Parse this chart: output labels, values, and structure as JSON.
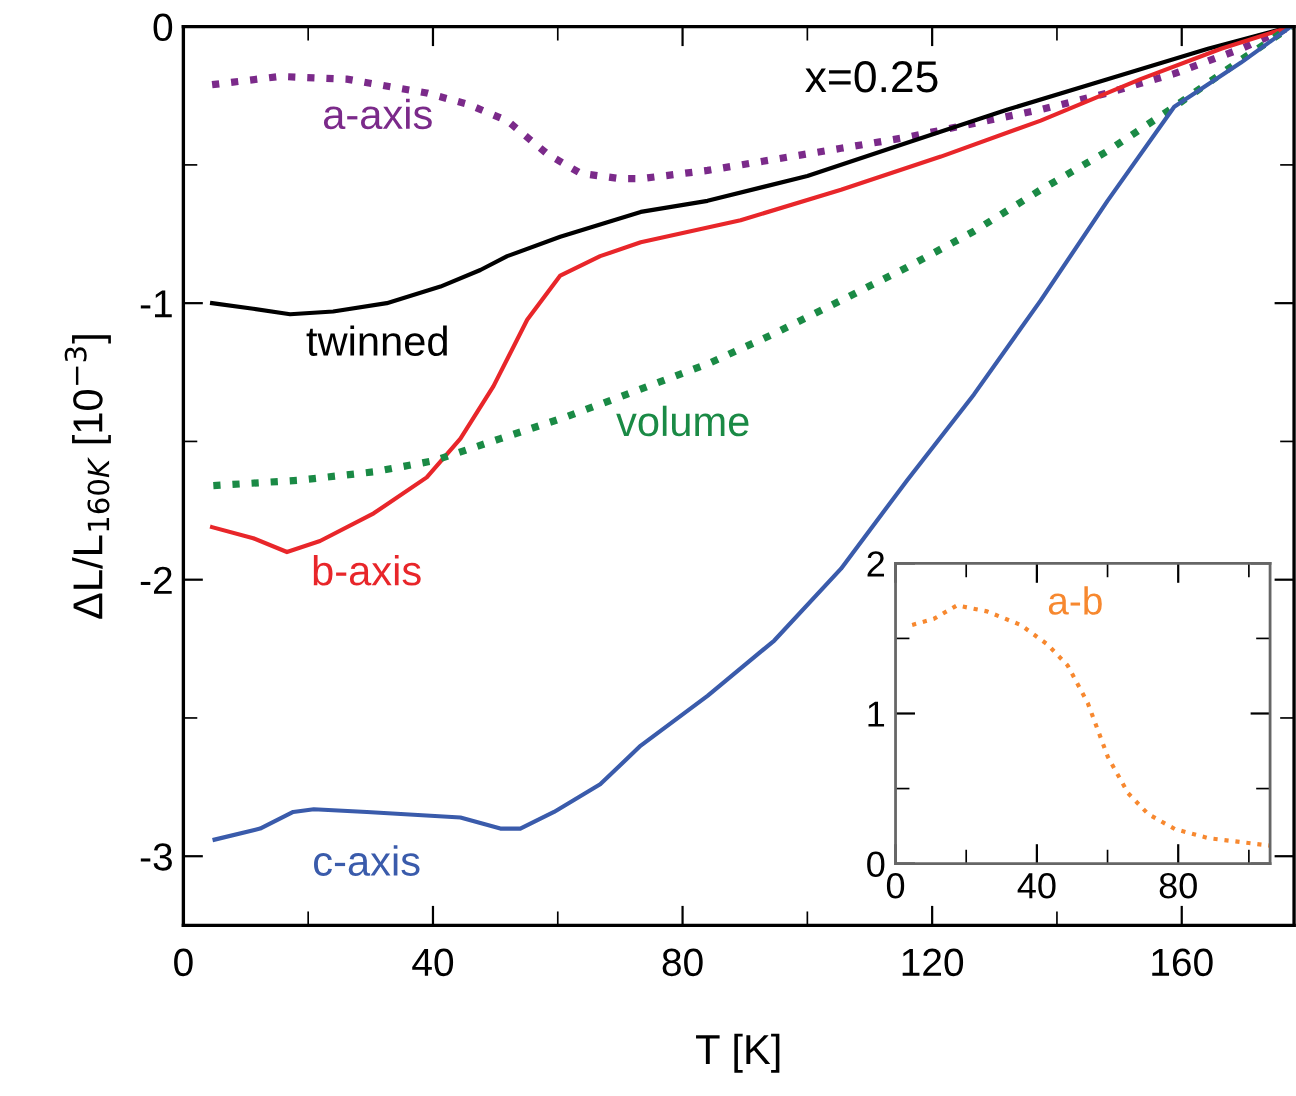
{
  "chart_data": [
    {
      "type": "line",
      "xlabel": "T [K]",
      "ylabel": "ΔL/L$_{160K}$ [10$^{−3}$]",
      "xlim": [
        0,
        178
      ],
      "ylim": [
        -3.25,
        0
      ],
      "xticks": [
        0,
        40,
        80,
        120,
        160
      ],
      "yticks": [
        0,
        -1,
        -2,
        -3
      ],
      "grid": false,
      "legend": false,
      "marker": "none",
      "series": [
        {
          "name": "a-axis",
          "color": "#7b2a8a",
          "line_style": "dotted",
          "x": [
            4.6,
            15.5,
            26.2,
            39,
            45.5,
            51.9,
            58.3,
            63.6,
            70,
            73.3,
            84,
            94.7,
            105.4,
            116,
            126.7,
            137.4,
            148.1,
            158.8,
            169.5,
            177.5
          ],
          "values": [
            -0.21,
            -0.18,
            -0.19,
            -0.24,
            -0.28,
            -0.34,
            -0.46,
            -0.53,
            -0.55,
            -0.55,
            -0.52,
            -0.48,
            -0.44,
            -0.4,
            -0.35,
            -0.3,
            -0.24,
            -0.17,
            -0.08,
            0
          ]
        },
        {
          "name": "twinned",
          "color": "#000000",
          "line_style": "solid",
          "x": [
            4.6,
            11.2,
            17.1,
            24,
            32.6,
            41.2,
            47.6,
            51.9,
            60.4,
            69,
            73.3,
            84,
            100,
            116,
            132.1,
            148.1,
            164.2,
            177.5
          ],
          "values": [
            -1.0,
            -1.02,
            -1.04,
            -1.03,
            -1.0,
            -0.94,
            -0.88,
            -0.83,
            -0.76,
            -0.7,
            -0.67,
            -0.63,
            -0.54,
            -0.42,
            -0.3,
            -0.19,
            -0.08,
            0
          ]
        },
        {
          "name": "b-axis",
          "color": "#e8262a",
          "line_style": "solid",
          "x": [
            4.6,
            11.2,
            16.6,
            21.9,
            30.5,
            39,
            44.4,
            49.7,
            55.1,
            60.4,
            66.8,
            73.3,
            89.3,
            105.4,
            121.4,
            137.4,
            153.4,
            166.3,
            177.5
          ],
          "values": [
            -1.81,
            -1.85,
            -1.9,
            -1.86,
            -1.76,
            -1.63,
            -1.49,
            -1.3,
            -1.06,
            -0.9,
            -0.83,
            -0.78,
            -0.7,
            -0.59,
            -0.47,
            -0.34,
            -0.19,
            -0.08,
            0
          ]
        },
        {
          "name": "volume",
          "color": "#1a8a45",
          "line_style": "dotted",
          "x": [
            4.8,
            18.7,
            30.5,
            40.1,
            50.8,
            61.5,
            72.2,
            84,
            94.7,
            105.4,
            116,
            126.7,
            137.4,
            148.1,
            158.8,
            169.5,
            177.5
          ],
          "values": [
            -1.66,
            -1.64,
            -1.61,
            -1.57,
            -1.49,
            -1.41,
            -1.32,
            -1.22,
            -1.11,
            -0.99,
            -0.87,
            -0.74,
            -0.59,
            -0.45,
            -0.29,
            -0.12,
            0
          ]
        },
        {
          "name": "c-axis",
          "color": "#3a5bab",
          "line_style": "solid",
          "x": [
            5,
            12.3,
            17.6,
            20.9,
            29.4,
            44.4,
            47.6,
            50.8,
            54,
            59.4,
            66.8,
            73.3,
            84,
            94.7,
            105.4,
            116,
            126.7,
            137.4,
            148.1,
            158.8,
            169.5,
            177.5
          ],
          "values": [
            -2.94,
            -2.9,
            -2.84,
            -2.83,
            -2.84,
            -2.86,
            -2.88,
            -2.9,
            -2.9,
            -2.84,
            -2.74,
            -2.6,
            -2.42,
            -2.22,
            -1.96,
            -1.64,
            -1.33,
            -0.99,
            -0.63,
            -0.29,
            -0.13,
            0
          ]
        }
      ],
      "annotations": [
        "x=0.25"
      ]
    },
    {
      "type": "line",
      "xlim": [
        0,
        106
      ],
      "ylim": [
        0,
        2
      ],
      "xticks": [
        0,
        40,
        80
      ],
      "yticks": [
        0,
        1,
        2
      ],
      "grid": false,
      "legend": false,
      "marker": "none",
      "series": [
        {
          "name": "a-b",
          "color": "#f7882f",
          "line_style": "dotted",
          "x": [
            4.7,
            10.8,
            17.4,
            25.9,
            35.4,
            43,
            48.7,
            54.4,
            60.1,
            65.8,
            71.5,
            79.1,
            88.5,
            106
          ],
          "values": [
            1.59,
            1.63,
            1.72,
            1.68,
            1.59,
            1.46,
            1.32,
            1.07,
            0.71,
            0.47,
            0.33,
            0.23,
            0.17,
            0.12
          ]
        }
      ]
    }
  ]
}
